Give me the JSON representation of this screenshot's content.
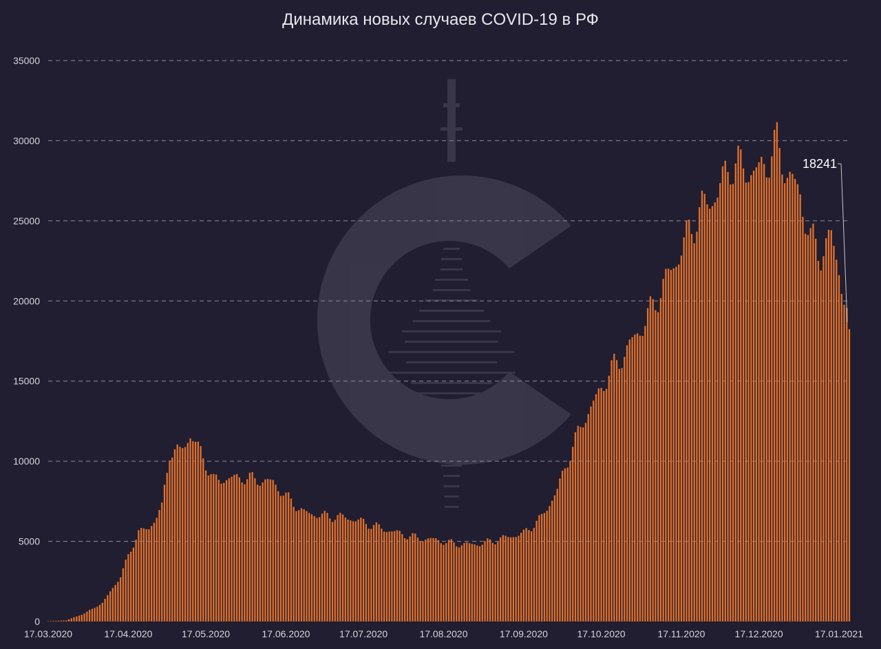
{
  "chart_data": {
    "type": "bar",
    "title": "Динамика новых случаев COVID-19 в РФ",
    "xlabel": "",
    "ylabel": "",
    "ylim": [
      0,
      35000
    ],
    "y_ticks": [
      "0",
      "5000",
      "10000",
      "15000",
      "20000",
      "25000",
      "30000",
      "35000"
    ],
    "x_tick_labels": [
      "17.03.2020",
      "17.04.2020",
      "17.05.2020",
      "17.06.2020",
      "17.07.2020",
      "17.08.2020",
      "17.09.2020",
      "17.10.2020",
      "17.11.2020",
      "17.12.2020",
      "17.01.2021"
    ],
    "x_tick_dates": [
      "2020-03-17",
      "2020-04-17",
      "2020-05-17",
      "2020-06-17",
      "2020-07-17",
      "2020-08-17",
      "2020-09-17",
      "2020-10-17",
      "2020-11-17",
      "2020-12-17",
      "2021-01-17"
    ],
    "grid": true,
    "legend": "none",
    "bar_color": "#e2702c",
    "background": "#201e30",
    "annotation": {
      "date": "2021-01-21",
      "value": 18241,
      "text": "18241"
    },
    "series_anchors": [
      [
        "2020-03-17",
        20
      ],
      [
        "2020-03-24",
        70
      ],
      [
        "2020-03-31",
        500
      ],
      [
        "2020-04-07",
        1150
      ],
      [
        "2020-04-14",
        2800
      ],
      [
        "2020-04-17",
        4100
      ],
      [
        "2020-04-21",
        5600
      ],
      [
        "2020-04-25",
        5800
      ],
      [
        "2020-04-30",
        7100
      ],
      [
        "2020-05-03",
        10600
      ],
      [
        "2020-05-07",
        10600
      ],
      [
        "2020-05-11",
        11600
      ],
      [
        "2020-05-15",
        10600
      ],
      [
        "2020-05-20",
        8800
      ],
      [
        "2020-05-25",
        8900
      ],
      [
        "2020-05-31",
        9000
      ],
      [
        "2020-06-07",
        8800
      ],
      [
        "2020-06-12",
        8700
      ],
      [
        "2020-06-17",
        7800
      ],
      [
        "2020-06-24",
        6800
      ],
      [
        "2020-07-01",
        6600
      ],
      [
        "2020-07-10",
        6500
      ],
      [
        "2020-07-17",
        6200
      ],
      [
        "2020-07-24",
        5800
      ],
      [
        "2020-07-31",
        5500
      ],
      [
        "2020-08-07",
        5200
      ],
      [
        "2020-08-14",
        5100
      ],
      [
        "2020-08-21",
        4850
      ],
      [
        "2020-08-28",
        4800
      ],
      [
        "2020-09-02",
        4900
      ],
      [
        "2020-09-09",
        5200
      ],
      [
        "2020-09-17",
        5500
      ],
      [
        "2020-09-24",
        6500
      ],
      [
        "2020-09-30",
        8200
      ],
      [
        "2020-10-05",
        10500
      ],
      [
        "2020-10-10",
        12500
      ],
      [
        "2020-10-15",
        13900
      ],
      [
        "2020-10-20",
        15500
      ],
      [
        "2020-10-25",
        16500
      ],
      [
        "2020-10-30",
        17700
      ],
      [
        "2020-11-05",
        19300
      ],
      [
        "2020-11-10",
        21000
      ],
      [
        "2020-11-15",
        22500
      ],
      [
        "2020-11-20",
        24300
      ],
      [
        "2020-11-25",
        25800
      ],
      [
        "2020-12-01",
        26700
      ],
      [
        "2020-12-06",
        28600
      ],
      [
        "2020-12-12",
        28200
      ],
      [
        "2020-12-17",
        28000
      ],
      [
        "2020-12-21",
        29000
      ],
      [
        "2020-12-24",
        29700
      ],
      [
        "2020-12-28",
        28000
      ],
      [
        "2021-01-02",
        26600
      ],
      [
        "2021-01-06",
        23800
      ],
      [
        "2021-01-10",
        23000
      ],
      [
        "2021-01-14",
        24000
      ],
      [
        "2021-01-17",
        22000
      ],
      [
        "2021-01-21",
        18241
      ]
    ]
  }
}
